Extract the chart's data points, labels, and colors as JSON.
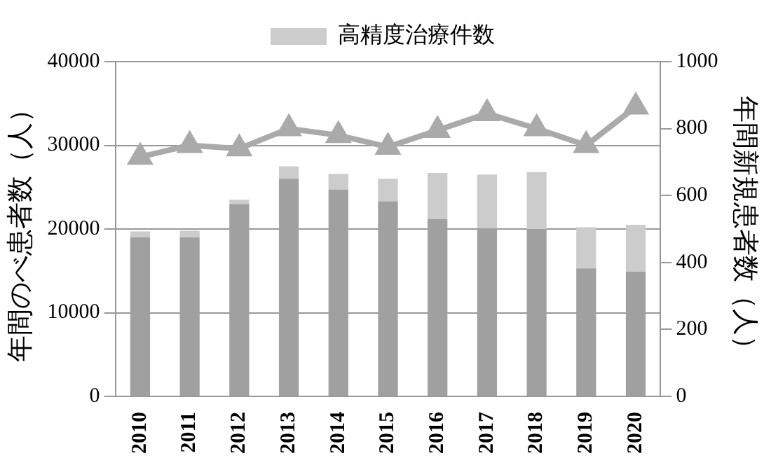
{
  "chart_data": {
    "type": "bar",
    "stacked": true,
    "ylabel": "年間のべ患者数（人）",
    "y2label": "年間新規患者数（人）",
    "categories": [
      "2010",
      "2011",
      "2012",
      "2013",
      "2014",
      "2015",
      "2016",
      "2017",
      "2018",
      "2019",
      "2020"
    ],
    "series": [
      {
        "color": "#a0a0a0",
        "values": [
          19000,
          19000,
          23000,
          26000,
          24700,
          23300,
          21200,
          20100,
          20000,
          15300,
          14900
        ]
      },
      {
        "name": "高精度治療件数",
        "color": "#cccccc",
        "values": [
          700,
          800,
          500,
          1500,
          1900,
          2700,
          5500,
          6400,
          6800,
          4900,
          5600
        ]
      },
      {
        "type": "line",
        "axis": "y2",
        "color": "#aaaaaa",
        "marker": "triangle",
        "values": [
          715,
          750,
          740,
          800,
          780,
          745,
          795,
          845,
          800,
          750,
          865
        ]
      }
    ],
    "ylim": [
      0,
      40000
    ],
    "yticks": [
      0,
      10000,
      20000,
      30000,
      40000
    ],
    "y2lim": [
      0,
      1000
    ],
    "y2ticks": [
      0,
      200,
      400,
      600,
      800,
      1000
    ],
    "grid": "y",
    "legend": "top"
  }
}
